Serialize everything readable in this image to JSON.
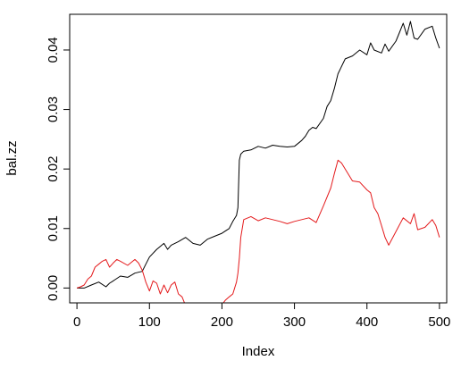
{
  "chart_data": {
    "type": "line",
    "title": "",
    "xlabel": "Index",
    "ylabel": "bal.zz",
    "xlim": [
      -10,
      510
    ],
    "ylim": [
      -0.0025,
      0.046
    ],
    "grid": false,
    "legend": "none",
    "x_ticks": [
      {
        "value": 0,
        "label": "0"
      },
      {
        "value": 100,
        "label": "100"
      },
      {
        "value": 200,
        "label": "200"
      },
      {
        "value": 300,
        "label": "300"
      },
      {
        "value": 400,
        "label": "400"
      },
      {
        "value": 500,
        "label": "500"
      }
    ],
    "y_ticks": [
      {
        "value": 0.0,
        "label": "0.00"
      },
      {
        "value": 0.01,
        "label": "0.01"
      },
      {
        "value": 0.02,
        "label": "0.02"
      },
      {
        "value": 0.03,
        "label": "0.03"
      },
      {
        "value": 0.04,
        "label": "0.04"
      }
    ],
    "series": [
      {
        "color": "#000000",
        "x": [
          0,
          10,
          20,
          30,
          40,
          45,
          50,
          60,
          70,
          80,
          90,
          95,
          100,
          110,
          120,
          125,
          130,
          140,
          150,
          160,
          170,
          180,
          190,
          200,
          210,
          215,
          220,
          222,
          224,
          226,
          230,
          240,
          250,
          260,
          270,
          280,
          290,
          300,
          310,
          315,
          320,
          325,
          330,
          340,
          345,
          350,
          355,
          360,
          370,
          380,
          390,
          400,
          405,
          410,
          420,
          425,
          430,
          440,
          445,
          450,
          455,
          460,
          465,
          470,
          480,
          490,
          495,
          500
        ],
        "y": [
          0.0,
          0.0,
          0.0005,
          0.001,
          0.0002,
          0.0008,
          0.0012,
          0.002,
          0.0018,
          0.0025,
          0.0028,
          0.004,
          0.0052,
          0.0065,
          0.0075,
          0.0065,
          0.0072,
          0.0078,
          0.0085,
          0.0075,
          0.0072,
          0.0082,
          0.0087,
          0.0092,
          0.01,
          0.0112,
          0.0122,
          0.0135,
          0.0215,
          0.0225,
          0.023,
          0.0232,
          0.0238,
          0.0235,
          0.024,
          0.0238,
          0.0237,
          0.0238,
          0.0248,
          0.0255,
          0.0265,
          0.027,
          0.0268,
          0.0285,
          0.0305,
          0.0315,
          0.0335,
          0.036,
          0.0385,
          0.039,
          0.04,
          0.0392,
          0.0412,
          0.04,
          0.0395,
          0.041,
          0.0398,
          0.0415,
          0.043,
          0.0445,
          0.0425,
          0.0448,
          0.042,
          0.0418,
          0.0435,
          0.044,
          0.042,
          0.0403
        ]
      },
      {
        "color": "#e41a1c",
        "x": [
          0,
          5,
          10,
          15,
          20,
          25,
          30,
          35,
          40,
          45,
          50,
          55,
          60,
          70,
          80,
          85,
          90,
          95,
          100,
          105,
          110,
          115,
          120,
          125,
          130,
          135,
          140,
          145,
          150,
          160,
          170,
          180,
          190,
          200,
          205,
          210,
          215,
          220,
          222,
          224,
          226,
          230,
          240,
          250,
          260,
          270,
          280,
          290,
          300,
          310,
          320,
          330,
          340,
          350,
          355,
          360,
          365,
          370,
          380,
          390,
          400,
          405,
          410,
          415,
          420,
          425,
          430,
          440,
          450,
          460,
          465,
          470,
          480,
          490,
          495,
          500
        ],
        "y": [
          0.0,
          0.0002,
          0.0005,
          0.0015,
          0.002,
          0.0035,
          0.004,
          0.0045,
          0.0048,
          0.0035,
          0.0042,
          0.0048,
          0.0045,
          0.0038,
          0.0048,
          0.0042,
          0.003,
          0.001,
          -0.0005,
          0.0012,
          0.0008,
          -0.001,
          0.0005,
          -0.0008,
          0.0005,
          0.001,
          -0.001,
          -0.0015,
          -0.003,
          -0.003,
          -0.003,
          -0.003,
          -0.003,
          -0.0028,
          -0.002,
          -0.0015,
          -0.001,
          0.001,
          0.0025,
          0.005,
          0.0085,
          0.0115,
          0.012,
          0.0113,
          0.0118,
          0.0115,
          0.0112,
          0.0108,
          0.0112,
          0.0115,
          0.0118,
          0.011,
          0.0138,
          0.0168,
          0.0192,
          0.0215,
          0.021,
          0.02,
          0.018,
          0.0178,
          0.0165,
          0.016,
          0.0135,
          0.0125,
          0.0105,
          0.0085,
          0.0072,
          0.0095,
          0.0118,
          0.0108,
          0.0125,
          0.0098,
          0.0102,
          0.0115,
          0.0105,
          0.0085
        ]
      }
    ]
  }
}
